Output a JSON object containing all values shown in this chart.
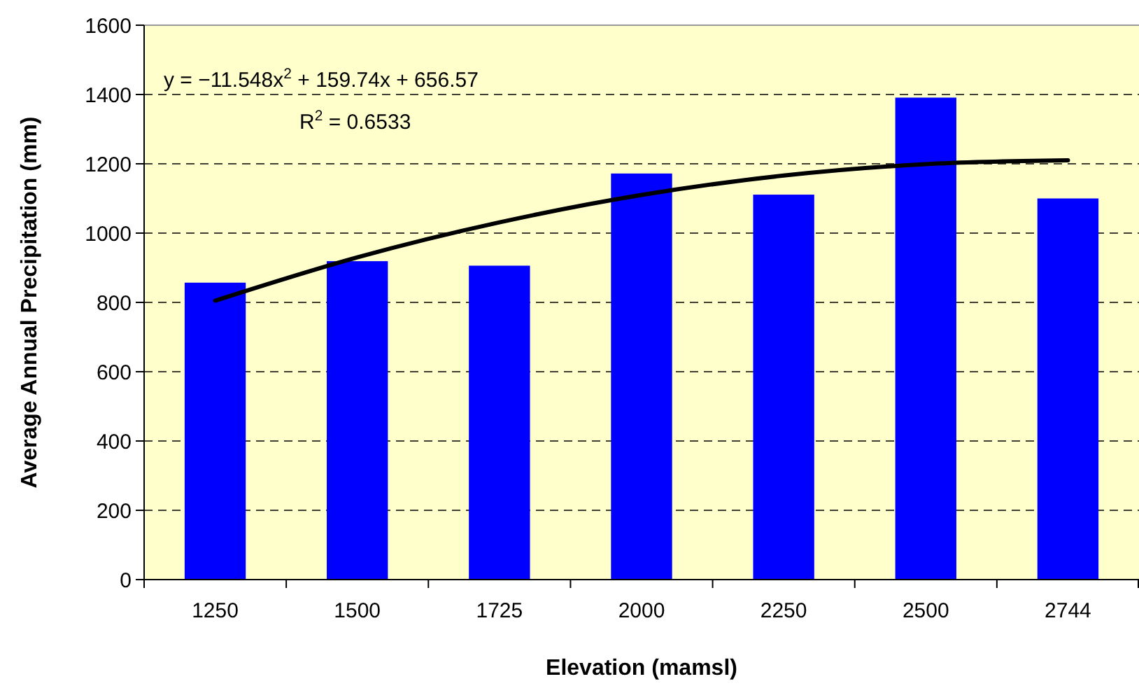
{
  "chart_data": {
    "type": "bar",
    "xlabel": "Elevation (mamsl)",
    "ylabel": "Average Annual Precipitation (mm)",
    "categories": [
      "1250",
      "1500",
      "1725",
      "2000",
      "2250",
      "2500",
      "2744"
    ],
    "series": [
      {
        "color": "#0000ff",
        "values": [
          857,
          919,
          906,
          1172,
          1111,
          1391,
          1100
        ]
      },
      {
        "type": "line",
        "color": "#000000",
        "values": [
          805,
          930,
          1031,
          1110,
          1166,
          1199,
          1210
        ]
      }
    ],
    "ylim": [
      0,
      1600
    ],
    "yticks": [
      0,
      200,
      400,
      600,
      800,
      1000,
      1200,
      1400,
      1600
    ],
    "grid": "y",
    "marker": "none",
    "annotations": [
      "y = −11.548x$^{2}$ + 159.74x + 656.57",
      "R$^{2}$ = 0.6533"
    ]
  }
}
